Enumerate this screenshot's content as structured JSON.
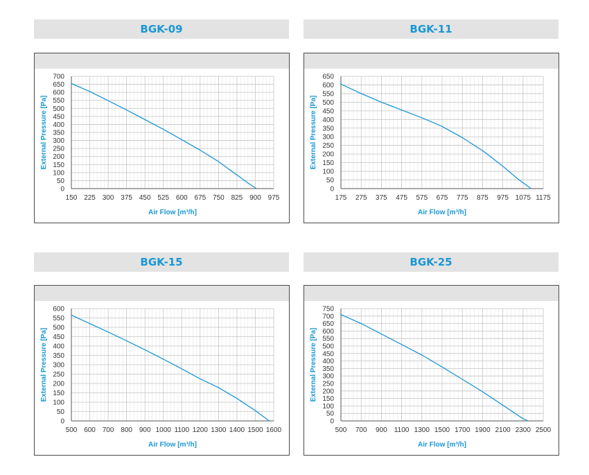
{
  "accent_color": "#1a97d4",
  "chart_data": [
    {
      "title": "BGK-09",
      "type": "line",
      "xlabel": "Air Flow [m³/h]",
      "ylabel": "External Pressure [Pa]",
      "xlim": [
        150,
        975
      ],
      "ylim": [
        0,
        700
      ],
      "x_ticks": [
        150,
        225,
        300,
        375,
        450,
        525,
        600,
        675,
        750,
        825,
        900,
        975
      ],
      "y_ticks": [
        0,
        50,
        100,
        150,
        200,
        250,
        300,
        350,
        400,
        450,
        500,
        550,
        600,
        650,
        700
      ],
      "grid": true,
      "series": [
        {
          "x": [
            150,
            225,
            300,
            375,
            450,
            525,
            600,
            675,
            750,
            825,
            870,
            905
          ],
          "y": [
            655,
            605,
            548,
            490,
            430,
            370,
            305,
            240,
            168,
            85,
            35,
            0
          ]
        }
      ]
    },
    {
      "title": "BGK-11",
      "type": "line",
      "xlabel": "Air Flow [m³/h]",
      "ylabel": "External Pressure [Pa]",
      "xlim": [
        175,
        1175
      ],
      "ylim": [
        0,
        650
      ],
      "x_ticks": [
        175,
        275,
        375,
        475,
        575,
        675,
        775,
        875,
        975,
        1075,
        1175
      ],
      "y_ticks": [
        0,
        50,
        100,
        150,
        200,
        250,
        300,
        350,
        400,
        450,
        500,
        550,
        600,
        650
      ],
      "grid": true,
      "series": [
        {
          "x": [
            175,
            275,
            375,
            475,
            575,
            675,
            775,
            875,
            975,
            1050,
            1115
          ],
          "y": [
            605,
            550,
            500,
            455,
            410,
            360,
            295,
            220,
            130,
            55,
            0
          ]
        }
      ]
    },
    {
      "title": "BGK-15",
      "type": "line",
      "xlabel": "Air Flow [m³/h]",
      "ylabel": "External Pressure [Pa]",
      "xlim": [
        500,
        1600
      ],
      "ylim": [
        0,
        600
      ],
      "x_ticks": [
        500,
        600,
        700,
        800,
        900,
        1000,
        1100,
        1200,
        1300,
        1400,
        1500,
        1600
      ],
      "y_ticks": [
        0,
        50,
        100,
        150,
        200,
        250,
        300,
        350,
        400,
        450,
        500,
        550,
        600
      ],
      "grid": true,
      "series": [
        {
          "x": [
            500,
            600,
            700,
            800,
            900,
            1000,
            1100,
            1200,
            1300,
            1400,
            1500,
            1575
          ],
          "y": [
            565,
            520,
            475,
            428,
            380,
            330,
            278,
            225,
            178,
            120,
            55,
            0
          ]
        }
      ]
    },
    {
      "title": "BGK-25",
      "type": "line",
      "xlabel": "Air Flow [m³/h]",
      "ylabel": "External Pressure [Pa]",
      "xlim": [
        500,
        2500
      ],
      "ylim": [
        0,
        750
      ],
      "x_ticks": [
        500,
        700,
        900,
        1100,
        1300,
        1500,
        1700,
        1900,
        2100,
        2300,
        2500
      ],
      "y_ticks": [
        0,
        50,
        100,
        150,
        200,
        250,
        300,
        350,
        400,
        450,
        500,
        550,
        600,
        650,
        700,
        750
      ],
      "grid": true,
      "series": [
        {
          "x": [
            500,
            700,
            900,
            1100,
            1300,
            1500,
            1700,
            1900,
            2100,
            2300,
            2350
          ],
          "y": [
            710,
            650,
            580,
            510,
            440,
            360,
            278,
            195,
            105,
            15,
            0
          ]
        }
      ]
    }
  ]
}
